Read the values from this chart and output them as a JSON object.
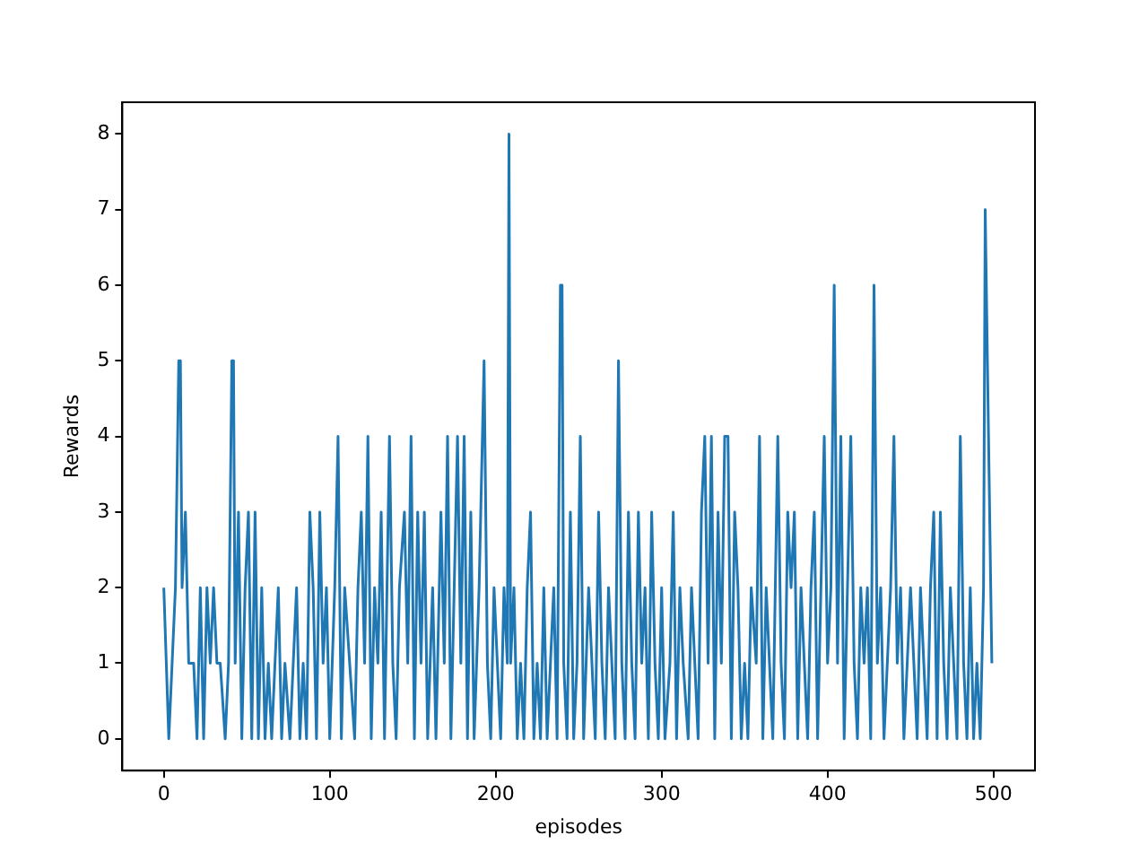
{
  "chart_data": {
    "type": "line",
    "xlabel": "episodes",
    "ylabel": "Rewards",
    "x": [
      0,
      3,
      5,
      7,
      9,
      10,
      11,
      13,
      15,
      18,
      20,
      22,
      24,
      26,
      28,
      30,
      32,
      34,
      37,
      39,
      41,
      42,
      43,
      45,
      47,
      49,
      51,
      53,
      55,
      57,
      59,
      61,
      63,
      65,
      67,
      69,
      71,
      73,
      76,
      78,
      80,
      82,
      84,
      86,
      88,
      90,
      92,
      94,
      96,
      98,
      100,
      103,
      105,
      107,
      109,
      112,
      115,
      117,
      119,
      121,
      123,
      125,
      127,
      129,
      131,
      133,
      136,
      138,
      140,
      142,
      145,
      147,
      149,
      151,
      153,
      155,
      157,
      159,
      162,
      164,
      167,
      169,
      171,
      173,
      175,
      177,
      179,
      181,
      183,
      185,
      187,
      190,
      193,
      195,
      197,
      199,
      201,
      203,
      205,
      207,
      208,
      209,
      211,
      213,
      215,
      217,
      219,
      221,
      223,
      225,
      227,
      229,
      231,
      233,
      235,
      237,
      239,
      240,
      241,
      243,
      245,
      247,
      249,
      251,
      253,
      256,
      258,
      260,
      262,
      264,
      266,
      268,
      270,
      272,
      274,
      276,
      278,
      280,
      282,
      284,
      286,
      288,
      290,
      292,
      294,
      296,
      298,
      300,
      302,
      305,
      307,
      309,
      311,
      313,
      316,
      318,
      320,
      322,
      324,
      326,
      328,
      330,
      332,
      334,
      336,
      338,
      340,
      342,
      344,
      346,
      348,
      350,
      352,
      354,
      357,
      359,
      361,
      363,
      365,
      367,
      370,
      372,
      374,
      376,
      378,
      380,
      382,
      384,
      386,
      388,
      390,
      392,
      394,
      396,
      398,
      400,
      402,
      404,
      406,
      408,
      410,
      412,
      414,
      416,
      418,
      420,
      422,
      424,
      426,
      428,
      430,
      432,
      434,
      436,
      438,
      440,
      442,
      444,
      446,
      448,
      450,
      452,
      454,
      456,
      458,
      460,
      462,
      464,
      466,
      468,
      470,
      472,
      474,
      476,
      478,
      480,
      482,
      484,
      486,
      488,
      490,
      492,
      494,
      495,
      497,
      499
    ],
    "series": [
      {
        "color": "#1f77b4",
        "values": [
          2,
          0,
          1,
          2,
          5,
          5,
          2,
          3,
          1,
          1,
          0,
          2,
          0,
          2,
          1,
          2,
          1,
          1,
          0,
          1,
          5,
          5,
          1,
          3,
          0,
          2,
          3,
          0,
          3,
          0,
          2,
          0,
          1,
          0,
          1,
          2,
          0,
          1,
          0,
          1,
          2,
          0,
          1,
          0,
          3,
          2,
          0,
          3,
          1,
          2,
          0,
          2,
          4,
          0,
          2,
          1,
          0,
          2,
          3,
          1,
          4,
          0,
          2,
          1,
          3,
          0,
          4,
          1,
          0,
          2,
          3,
          1,
          4,
          0,
          3,
          1,
          3,
          0,
          2,
          0,
          3,
          1,
          4,
          0,
          2,
          4,
          1,
          4,
          0,
          3,
          0,
          2,
          5,
          1,
          0,
          2,
          1,
          0,
          2,
          1,
          8,
          1,
          2,
          0,
          1,
          0,
          2,
          3,
          0,
          1,
          0,
          2,
          0,
          1,
          2,
          0,
          6,
          6,
          1,
          0,
          3,
          0,
          1,
          4,
          0,
          2,
          1,
          0,
          3,
          1,
          0,
          2,
          1,
          0,
          5,
          1,
          0,
          3,
          1,
          0,
          3,
          1,
          2,
          0,
          3,
          1,
          0,
          2,
          0,
          1,
          3,
          0,
          2,
          1,
          0,
          2,
          1,
          0,
          3,
          4,
          1,
          4,
          0,
          3,
          1,
          4,
          4,
          0,
          3,
          2,
          0,
          1,
          0,
          2,
          1,
          4,
          0,
          2,
          1,
          0,
          4,
          1,
          0,
          3,
          2,
          3,
          0,
          2,
          1,
          0,
          2,
          3,
          0,
          2,
          4,
          1,
          2,
          6,
          1,
          4,
          0,
          2,
          4,
          1,
          0,
          2,
          1,
          2,
          0,
          6,
          1,
          2,
          0,
          1,
          2,
          4,
          1,
          2,
          0,
          1,
          2,
          1,
          0,
          2,
          1,
          0,
          2,
          3,
          0,
          3,
          1,
          0,
          2,
          1,
          0,
          4,
          1,
          0,
          2,
          0,
          1,
          0,
          2,
          7,
          4,
          1
        ]
      }
    ],
    "xlim": [
      -25,
      525
    ],
    "xticks": [
      0,
      100,
      200,
      300,
      400,
      500
    ],
    "ylim": [
      -0.42,
      8.42
    ],
    "yticks": [
      0,
      1,
      2,
      3,
      4,
      5,
      6,
      7,
      8
    ]
  }
}
